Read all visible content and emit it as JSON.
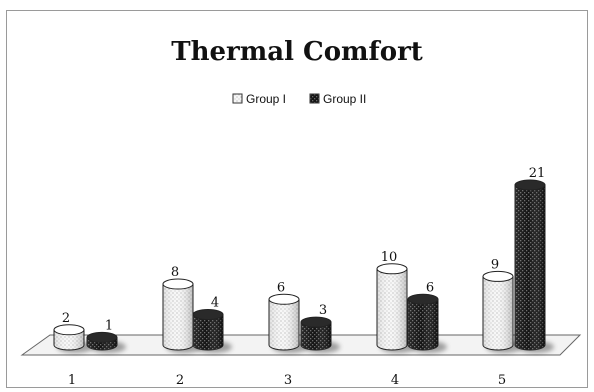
{
  "chart_data": {
    "type": "bar",
    "title": "Thermal Comfort",
    "categories": [
      "1",
      "2",
      "3",
      "4",
      "5"
    ],
    "series": [
      {
        "name": "Group I",
        "values": [
          2,
          8,
          6,
          10,
          9
        ]
      },
      {
        "name": "Group II",
        "values": [
          1,
          4,
          3,
          6,
          21
        ]
      }
    ],
    "xlabel": "",
    "ylabel": "",
    "ylim": [
      0,
      21
    ],
    "legend": "top-center",
    "grid": false,
    "style": "3d-cylinder"
  },
  "colors": {
    "group1_fill": "#f4f4f4",
    "group2_fill": "#1b1b1b",
    "floor": "#f2f2f2"
  }
}
